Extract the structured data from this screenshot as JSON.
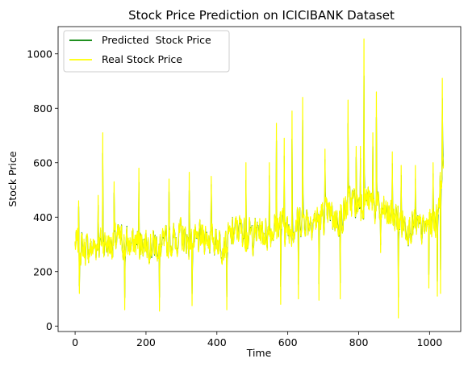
{
  "chart_data": {
    "type": "line",
    "title": "Stock Price Prediction on ICICIBANK Dataset",
    "xlabel": "Time",
    "ylabel": "Stock Price",
    "xlim": [
      -48,
      1088
    ],
    "ylim": [
      -20,
      1100
    ],
    "xticks": [
      0,
      200,
      400,
      600,
      800,
      1000
    ],
    "yticks": [
      0,
      200,
      400,
      600,
      800,
      1000
    ],
    "grid": false,
    "legend_position": "top-left",
    "n_points": 1040,
    "anchors": {
      "x": [
        0,
        20,
        40,
        60,
        80,
        100,
        120,
        140,
        160,
        180,
        200,
        220,
        240,
        260,
        280,
        300,
        320,
        340,
        360,
        380,
        400,
        420,
        440,
        460,
        480,
        500,
        520,
        540,
        560,
        580,
        600,
        620,
        640,
        660,
        680,
        700,
        720,
        740,
        760,
        780,
        800,
        820,
        840,
        860,
        880,
        900,
        920,
        940,
        960,
        980,
        1000,
        1020,
        1039
      ],
      "y": [
        300,
        290,
        280,
        300,
        310,
        300,
        320,
        300,
        300,
        310,
        310,
        300,
        290,
        300,
        320,
        330,
        310,
        300,
        330,
        330,
        320,
        300,
        330,
        360,
        340,
        330,
        350,
        340,
        360,
        380,
        350,
        370,
        400,
        390,
        390,
        400,
        410,
        390,
        420,
        460,
        450,
        470,
        440,
        420,
        410,
        400,
        380,
        370,
        360,
        350,
        380,
        400,
        640
      ]
    },
    "spikes": [
      {
        "x": 10,
        "y": 460
      },
      {
        "x": 12,
        "y": 120
      },
      {
        "x": 65,
        "y": 480
      },
      {
        "x": 78,
        "y": 710
      },
      {
        "x": 110,
        "y": 530
      },
      {
        "x": 140,
        "y": 60
      },
      {
        "x": 180,
        "y": 580
      },
      {
        "x": 238,
        "y": 55
      },
      {
        "x": 265,
        "y": 540
      },
      {
        "x": 322,
        "y": 565
      },
      {
        "x": 330,
        "y": 75
      },
      {
        "x": 384,
        "y": 550
      },
      {
        "x": 428,
        "y": 60
      },
      {
        "x": 482,
        "y": 600
      },
      {
        "x": 548,
        "y": 600
      },
      {
        "x": 568,
        "y": 745
      },
      {
        "x": 580,
        "y": 80
      },
      {
        "x": 590,
        "y": 690
      },
      {
        "x": 612,
        "y": 790
      },
      {
        "x": 630,
        "y": 100
      },
      {
        "x": 642,
        "y": 840
      },
      {
        "x": 688,
        "y": 95
      },
      {
        "x": 705,
        "y": 650
      },
      {
        "x": 748,
        "y": 100
      },
      {
        "x": 770,
        "y": 830
      },
      {
        "x": 793,
        "y": 660
      },
      {
        "x": 805,
        "y": 660
      },
      {
        "x": 815,
        "y": 1055
      },
      {
        "x": 840,
        "y": 710
      },
      {
        "x": 850,
        "y": 860
      },
      {
        "x": 862,
        "y": 270
      },
      {
        "x": 895,
        "y": 640
      },
      {
        "x": 912,
        "y": 30
      },
      {
        "x": 920,
        "y": 590
      },
      {
        "x": 960,
        "y": 590
      },
      {
        "x": 998,
        "y": 140
      },
      {
        "x": 1010,
        "y": 600
      },
      {
        "x": 1022,
        "y": 110
      },
      {
        "x": 1031,
        "y": 120
      },
      {
        "x": 1036,
        "y": 910
      }
    ],
    "amplitude": 85,
    "series": [
      {
        "name": "Predicted  Stock Price",
        "color": "#008000"
      },
      {
        "name": "Real Stock Price",
        "color": "#ffff00"
      }
    ]
  }
}
